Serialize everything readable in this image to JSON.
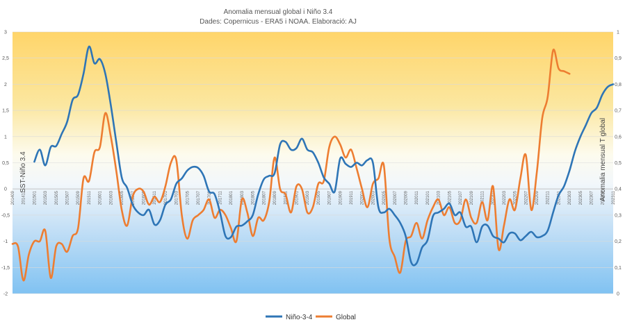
{
  "chart_data": {
    "type": "line",
    "title": "Anomalia mensual global i Niño 3.4",
    "subtitle": "Dades: Copernicus - ERA5 i NOAA. Elaboració: AJ",
    "ylabel_left": "SST-Niño 3.4",
    "ylabel_right": "Anomalia mensual T global",
    "y_left": {
      "min": -2,
      "max": 3,
      "ticks": [
        "3",
        "2,5",
        "2",
        "1,5",
        "1",
        "0,5",
        "0",
        "-0,5",
        "-1",
        "-1,5",
        "-2"
      ]
    },
    "y_right": {
      "min": 0,
      "max": 1,
      "ticks": [
        "1",
        "0,9",
        "0,8",
        "0,7",
        "0,6",
        "0,5",
        "0,4",
        "0,3",
        "0,2",
        "0,1",
        "0"
      ]
    },
    "x_tick_labels": [
      "201409",
      "201411",
      "201501",
      "201503",
      "201505",
      "201507",
      "201509",
      "201511",
      "201601",
      "201603",
      "201605",
      "201607",
      "201609",
      "201611",
      "201701",
      "201703",
      "201705",
      "201707",
      "201709",
      "201711",
      "201801",
      "201803",
      "201805",
      "201807",
      "201809",
      "201811",
      "201901",
      "201903",
      "201905",
      "201907",
      "201909",
      "201911",
      "202001",
      "202003",
      "202005",
      "202007",
      "202009",
      "202011",
      "202101",
      "202103",
      "202105",
      "202107",
      "202109",
      "202111",
      "202201",
      "202203",
      "202205",
      "202207",
      "202209",
      "202211",
      "202301",
      "202303",
      "202305",
      "202307",
      "202309",
      "202311"
    ],
    "grid": true,
    "legend_position": "bottom",
    "series": [
      {
        "name": "Niño-3-4",
        "axis": "left",
        "color": "#2e75b6",
        "start_index": 4,
        "values": [
          0.52,
          0.75,
          0.45,
          0.8,
          0.82,
          1.05,
          1.28,
          1.7,
          1.8,
          2.2,
          2.72,
          2.4,
          2.48,
          2.2,
          1.6,
          0.9,
          0.22,
          0.02,
          -0.3,
          -0.45,
          -0.5,
          -0.4,
          -0.68,
          -0.6,
          -0.3,
          -0.2,
          0.1,
          0.2,
          0.35,
          0.42,
          0.4,
          0.25,
          -0.05,
          -0.1,
          -0.45,
          -0.9,
          -0.92,
          -0.72,
          -0.7,
          -0.62,
          -0.5,
          -0.1,
          0.18,
          0.25,
          0.3,
          0.85,
          0.9,
          0.75,
          0.78,
          0.96,
          0.75,
          0.7,
          0.5,
          0.22,
          0.1,
          -0.05,
          0.58,
          0.48,
          0.42,
          0.5,
          0.45,
          0.55,
          0.5,
          -0.35,
          -0.45,
          -0.38,
          -0.5,
          -0.65,
          -0.9,
          -1.4,
          -1.42,
          -1.12,
          -0.98,
          -0.52,
          -0.45,
          -0.38,
          -0.28,
          -0.5,
          -0.45,
          -0.72,
          -0.72,
          -1.02,
          -0.72,
          -0.7,
          -0.9,
          -0.95,
          -1.02,
          -0.85,
          -0.85,
          -0.98,
          -0.9,
          -0.82,
          -0.92,
          -0.9,
          -0.8,
          -0.45,
          -0.12,
          0.05,
          0.35,
          0.72,
          1.0,
          1.22,
          1.45,
          1.55,
          1.8,
          1.95,
          2.0
        ]
      },
      {
        "name": "Global",
        "axis": "right",
        "color": "#ed7d31",
        "start_index": 0,
        "values": [
          0.19,
          0.18,
          0.05,
          0.15,
          0.2,
          0.2,
          0.24,
          0.06,
          0.18,
          0.19,
          0.16,
          0.22,
          0.25,
          0.44,
          0.43,
          0.54,
          0.56,
          0.69,
          0.6,
          0.47,
          0.32,
          0.26,
          0.37,
          0.4,
          0.39,
          0.34,
          0.37,
          0.35,
          0.41,
          0.5,
          0.51,
          0.3,
          0.21,
          0.28,
          0.3,
          0.32,
          0.36,
          0.29,
          0.32,
          0.3,
          0.25,
          0.2,
          0.36,
          0.31,
          0.22,
          0.29,
          0.28,
          0.35,
          0.52,
          0.4,
          0.38,
          0.31,
          0.41,
          0.4,
          0.31,
          0.33,
          0.42,
          0.43,
          0.56,
          0.6,
          0.57,
          0.52,
          0.55,
          0.48,
          0.4,
          0.33,
          0.42,
          0.44,
          0.49,
          0.21,
          0.14,
          0.08,
          0.2,
          0.22,
          0.27,
          0.21,
          0.28,
          0.33,
          0.36,
          0.3,
          0.33,
          0.27,
          0.28,
          0.36,
          0.29,
          0.27,
          0.35,
          0.28,
          0.41,
          0.17,
          0.26,
          0.36,
          0.32,
          0.44,
          0.53,
          0.32,
          0.46,
          0.67,
          0.75,
          0.93,
          0.86,
          0.85,
          0.84
        ]
      }
    ]
  }
}
